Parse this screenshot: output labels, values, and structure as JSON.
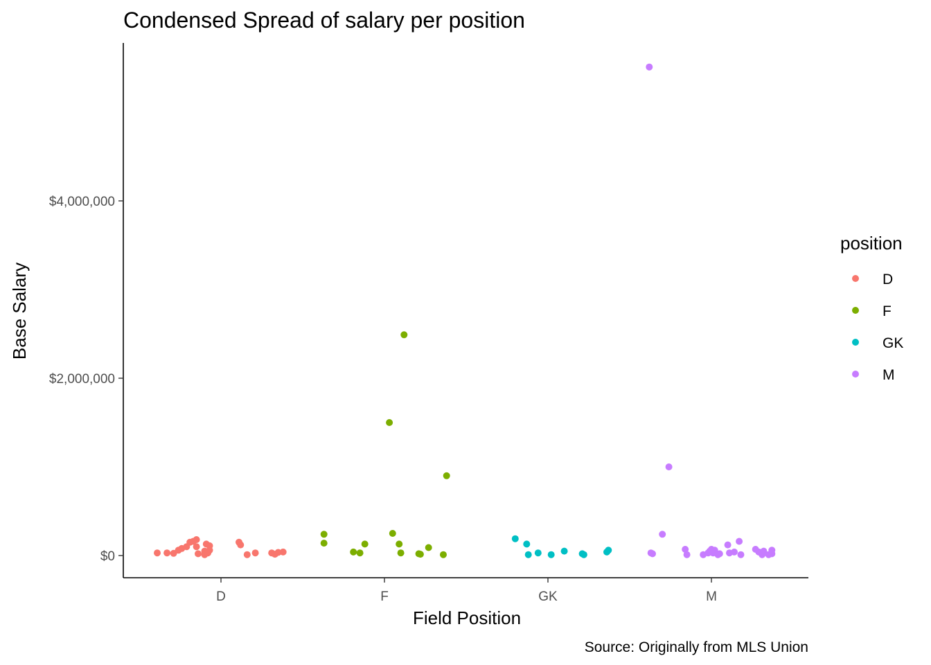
{
  "chart_data": {
    "type": "scatter",
    "title": "Condensed Spread of salary per position",
    "xlabel": "Field Position",
    "ylabel": "Base Salary",
    "caption": "Source: Originally from MLS Union",
    "categories": [
      "D",
      "F",
      "GK",
      "M"
    ],
    "y_ticks": [
      {
        "value": 0,
        "label": "$0"
      },
      {
        "value": 2000000,
        "label": "$2,000,000"
      },
      {
        "value": 4000000,
        "label": "$4,000,000"
      }
    ],
    "ylim": [
      -250000,
      5750000
    ],
    "legend": {
      "title": "position",
      "placement": "right"
    },
    "series": [
      {
        "name": "D",
        "color": "#F8766D",
        "points": [
          {
            "x": -0.39,
            "y": 30000
          },
          {
            "x": -0.33,
            "y": 30000
          },
          {
            "x": -0.29,
            "y": 25000
          },
          {
            "x": -0.26,
            "y": 60000
          },
          {
            "x": -0.24,
            "y": 80000
          },
          {
            "x": -0.21,
            "y": 100000
          },
          {
            "x": -0.19,
            "y": 150000
          },
          {
            "x": -0.17,
            "y": 160000
          },
          {
            "x": -0.15,
            "y": 180000
          },
          {
            "x": -0.15,
            "y": 100000
          },
          {
            "x": -0.14,
            "y": 20000
          },
          {
            "x": -0.1,
            "y": 10000
          },
          {
            "x": -0.1,
            "y": 50000
          },
          {
            "x": -0.09,
            "y": 130000
          },
          {
            "x": -0.08,
            "y": 30000
          },
          {
            "x": -0.07,
            "y": 60000
          },
          {
            "x": -0.07,
            "y": 110000
          },
          {
            "x": 0.11,
            "y": 150000
          },
          {
            "x": 0.12,
            "y": 120000
          },
          {
            "x": 0.16,
            "y": 10000
          },
          {
            "x": 0.21,
            "y": 30000
          },
          {
            "x": 0.31,
            "y": 30000
          },
          {
            "x": 0.33,
            "y": 15000
          },
          {
            "x": 0.35,
            "y": 35000
          },
          {
            "x": 0.38,
            "y": 40000
          }
        ]
      },
      {
        "name": "F",
        "color": "#7CAE00",
        "points": [
          {
            "x": -0.37,
            "y": 240000
          },
          {
            "x": -0.37,
            "y": 140000
          },
          {
            "x": -0.19,
            "y": 40000
          },
          {
            "x": -0.15,
            "y": 30000
          },
          {
            "x": -0.12,
            "y": 130000
          },
          {
            "x": 0.03,
            "y": 1500000
          },
          {
            "x": 0.05,
            "y": 250000
          },
          {
            "x": 0.09,
            "y": 130000
          },
          {
            "x": 0.1,
            "y": 30000
          },
          {
            "x": 0.12,
            "y": 2490000
          },
          {
            "x": 0.21,
            "y": 20000
          },
          {
            "x": 0.22,
            "y": 15000
          },
          {
            "x": 0.27,
            "y": 90000
          },
          {
            "x": 0.36,
            "y": 10000
          },
          {
            "x": 0.38,
            "y": 900000
          }
        ]
      },
      {
        "name": "GK",
        "color": "#00BFC4",
        "points": [
          {
            "x": -0.2,
            "y": 190000
          },
          {
            "x": -0.13,
            "y": 130000
          },
          {
            "x": -0.12,
            "y": 10000
          },
          {
            "x": -0.06,
            "y": 30000
          },
          {
            "x": 0.02,
            "y": 10000
          },
          {
            "x": 0.1,
            "y": 50000
          },
          {
            "x": 0.21,
            "y": 20000
          },
          {
            "x": 0.22,
            "y": 10000
          },
          {
            "x": 0.36,
            "y": 40000
          },
          {
            "x": 0.37,
            "y": 60000
          }
        ]
      },
      {
        "name": "M",
        "color": "#C77CFF",
        "points": [
          {
            "x": -0.38,
            "y": 5510000
          },
          {
            "x": -0.37,
            "y": 30000
          },
          {
            "x": -0.36,
            "y": 20000
          },
          {
            "x": -0.3,
            "y": 240000
          },
          {
            "x": -0.26,
            "y": 1000000
          },
          {
            "x": -0.16,
            "y": 70000
          },
          {
            "x": -0.15,
            "y": 10000
          },
          {
            "x": -0.05,
            "y": 10000
          },
          {
            "x": -0.02,
            "y": 30000
          },
          {
            "x": -0.01,
            "y": 50000
          },
          {
            "x": 0.0,
            "y": 70000
          },
          {
            "x": 0.01,
            "y": 30000
          },
          {
            "x": 0.02,
            "y": 60000
          },
          {
            "x": 0.04,
            "y": 10000
          },
          {
            "x": 0.05,
            "y": 20000
          },
          {
            "x": 0.1,
            "y": 120000
          },
          {
            "x": 0.11,
            "y": 30000
          },
          {
            "x": 0.14,
            "y": 40000
          },
          {
            "x": 0.17,
            "y": 160000
          },
          {
            "x": 0.18,
            "y": 10000
          },
          {
            "x": 0.27,
            "y": 70000
          },
          {
            "x": 0.29,
            "y": 40000
          },
          {
            "x": 0.31,
            "y": 10000
          },
          {
            "x": 0.32,
            "y": 50000
          },
          {
            "x": 0.35,
            "y": 10000
          },
          {
            "x": 0.37,
            "y": 20000
          },
          {
            "x": 0.37,
            "y": 60000
          }
        ]
      }
    ]
  }
}
